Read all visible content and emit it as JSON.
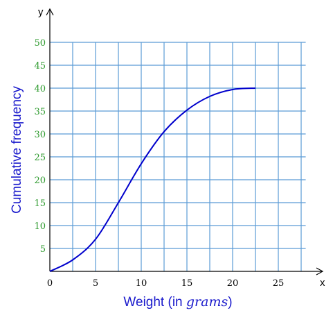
{
  "chart_data": {
    "type": "line",
    "title": "",
    "xlabel": "Weight (in ",
    "xlabel_italic": "grams",
    "xlabel_suffix": ")",
    "ylabel": "Cumulative frequency",
    "x_axis_letter": "x",
    "y_axis_letter": "y",
    "xlim": [
      0,
      28
    ],
    "ylim": [
      0,
      50
    ],
    "x_ticks": [
      0,
      5,
      10,
      15,
      20,
      25
    ],
    "y_ticks": [
      5,
      10,
      15,
      20,
      25,
      30,
      35,
      40,
      45,
      50
    ],
    "x_tick_labels": [
      "0",
      "5",
      "10",
      "15",
      "20",
      "25"
    ],
    "y_tick_labels": [
      "5",
      "10",
      "15",
      "20",
      "25",
      "30",
      "35",
      "40",
      "45",
      "50"
    ],
    "grid": true,
    "colors": {
      "grid": "#5b9bd5",
      "curve": "#0000cc",
      "ytick_text": "#2e9a2e",
      "axis_title": "#1a1acc"
    },
    "series": [
      {
        "points": [
          [
            0,
            0
          ],
          [
            2.5,
            2.5
          ],
          [
            5,
            7
          ],
          [
            7.5,
            15
          ],
          [
            10,
            23.5
          ],
          [
            12.5,
            30.5
          ],
          [
            15,
            35.2
          ],
          [
            17.5,
            38.2
          ],
          [
            20,
            39.7
          ],
          [
            22.5,
            40
          ]
        ]
      }
    ]
  }
}
